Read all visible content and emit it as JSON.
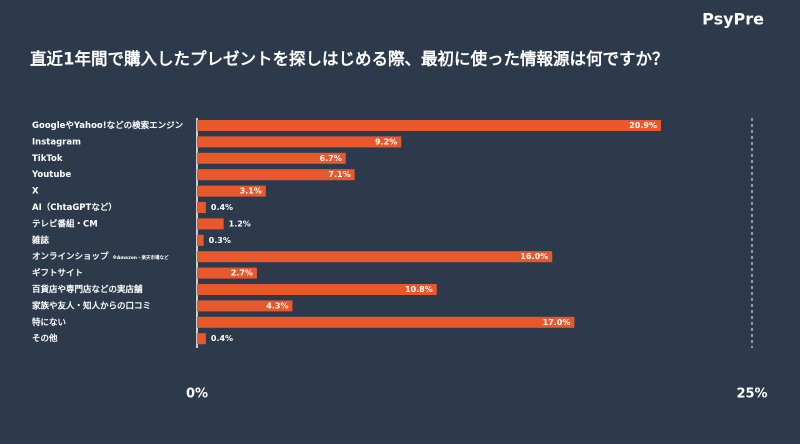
{
  "chart_data": {
    "type": "bar",
    "orientation": "horizontal",
    "brand": "PsyPre",
    "title": "直近1年間で購入したプレゼントを探しはじめる際、最初に使った情報源は何ですか？",
    "categories": [
      "GoogleやYahoo!などの検索エンジン",
      "Instagram",
      "TikTok",
      "Youtube",
      "X",
      "AI（ChtaGPTなど）",
      "テレビ番組・CM",
      "雑誌",
      "オンラインショップ",
      "ギフトサイト",
      "百貨店や専門店などの実店舗",
      "家族や友人・知人からの口コミ",
      "特にない",
      "その他"
    ],
    "values": [
      20.9,
      9.2,
      6.7,
      7.1,
      3.1,
      0.4,
      1.2,
      0.3,
      16.0,
      2.7,
      10.8,
      4.3,
      17.0,
      0.4
    ],
    "value_labels": [
      "20.9%",
      "9.2%",
      "6.7%",
      "7.1%",
      "3.1%",
      "0.4%",
      "1.2%",
      "0.3%",
      "16.0%",
      "2.7%",
      "10.8%",
      "4.3%",
      "17.0%",
      "0.4%"
    ],
    "annotation": "※Amazon・楽天市場など",
    "color": "#e8582a",
    "xlim": [
      0,
      25
    ],
    "xticks": [
      {
        "value": 0,
        "label": "0%"
      },
      {
        "value": 25,
        "label": "25%"
      }
    ]
  }
}
